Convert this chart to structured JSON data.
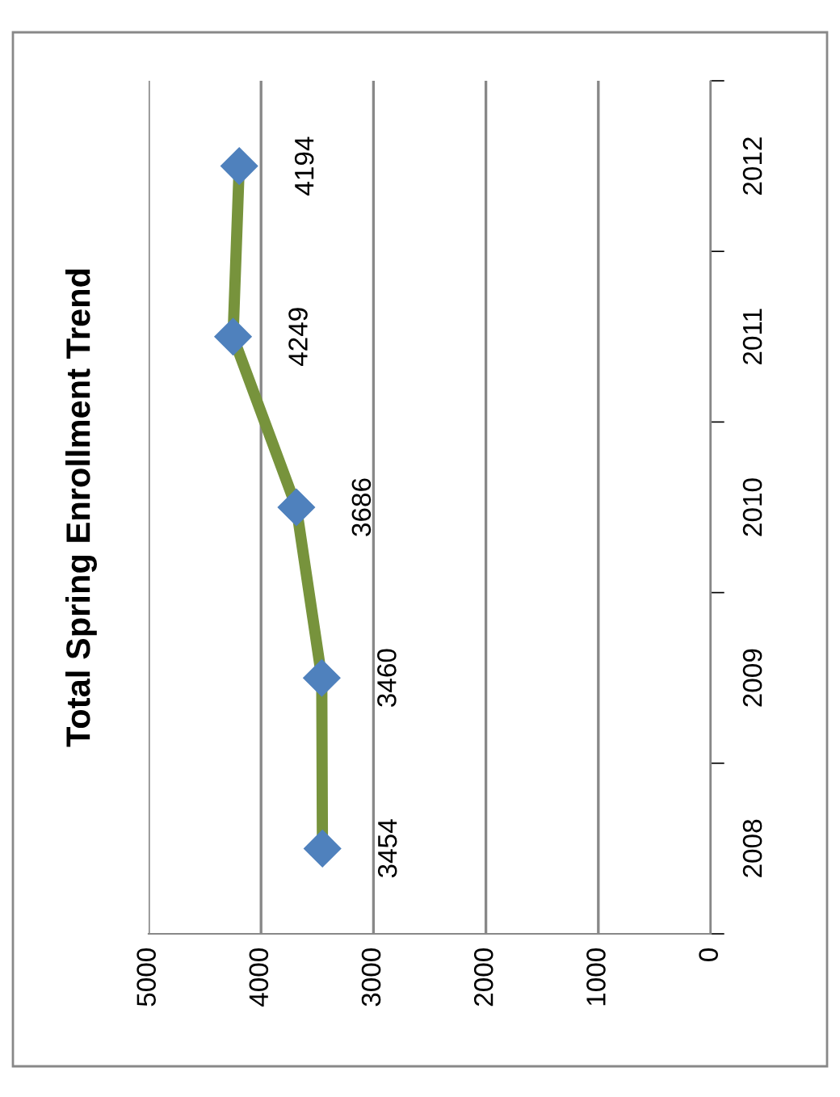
{
  "chart_data": {
    "type": "line",
    "title": "Total Spring Enrollment Trend",
    "orientation": "horizontal",
    "categories": [
      "2012",
      "2011",
      "2010",
      "2009",
      "2008"
    ],
    "series": [
      {
        "color": "#77933c",
        "colors": [
          "#4f81bd",
          "#4f81bd",
          "#4f81bd",
          "#4f81bd",
          "#4f81bd"
        ],
        "values": [
          4194,
          4249,
          3686,
          3460,
          3454
        ]
      }
    ],
    "marker": "diamond",
    "line_style": "solid",
    "xlim": [
      5000,
      0
    ],
    "xticks": [
      0,
      1000,
      2000,
      3000,
      4000,
      5000
    ],
    "grid": "x",
    "data_labels": true
  }
}
